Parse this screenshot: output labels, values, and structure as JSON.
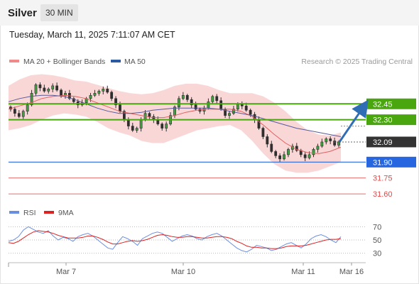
{
  "header": {
    "symbol": "Silver",
    "interval": "30 MIN"
  },
  "timestamp": "Tuesday, March 11, 2025 7:11:07 AM CET",
  "legend": {
    "ma20": "MA 20 + Bollinger Bands",
    "ma50": "MA 50",
    "credit": "Research © 2025 Trading Central",
    "rsi": "RSI",
    "rsi_ma": "9MA"
  },
  "colors": {
    "bollinger_fill": "#f9d0d0",
    "ma20": "#e06060",
    "ma50": "#5a5a9a",
    "candle": "#2f2f2f",
    "bull": "#3fa03f",
    "green_level": "#4aa60f",
    "blue_level": "#2866e0",
    "red_level": "#e04848",
    "dark_tag": "#333333",
    "arrow": "#2f6db5",
    "rsi": "#6b8fe0",
    "rsi_ma": "#dd2222"
  },
  "chart_data": [
    {
      "type": "candlestick",
      "title": "Silver 30 MIN",
      "ylim": [
        31.52,
        32.76
      ],
      "x_labels": [
        "Mar 7",
        "Mar 10",
        "Mar 11",
        "Mar 16"
      ],
      "levels": [
        {
          "label": "32.45",
          "value": 32.45,
          "kind": "resistance"
        },
        {
          "label": "32.30",
          "value": 32.3,
          "kind": "resistance"
        },
        {
          "label": "32.09",
          "value": 32.09,
          "kind": "last"
        },
        {
          "label": "31.90",
          "value": 31.9,
          "kind": "pivot"
        },
        {
          "label": "31.75",
          "value": 31.75,
          "kind": "support"
        },
        {
          "label": "31.60",
          "value": 31.6,
          "kind": "support"
        }
      ],
      "price_path": [
        32.4,
        32.36,
        32.33,
        32.38,
        32.44,
        32.55,
        32.63,
        32.6,
        32.57,
        32.59,
        32.62,
        32.58,
        32.53,
        32.55,
        32.5,
        32.47,
        32.44,
        32.46,
        32.5,
        32.53,
        32.55,
        32.57,
        32.59,
        32.56,
        32.5,
        32.44,
        32.38,
        32.3,
        32.24,
        32.2,
        32.22,
        32.3,
        32.36,
        32.33,
        32.3,
        32.26,
        32.22,
        32.26,
        32.34,
        32.42,
        32.5,
        32.53,
        32.49,
        32.44,
        32.4,
        32.38,
        32.41,
        32.47,
        32.52,
        32.48,
        32.4,
        32.34,
        32.36,
        32.4,
        32.45,
        32.43,
        32.39,
        32.35,
        32.3,
        32.22,
        32.14,
        32.07,
        32.0,
        31.96,
        31.93,
        31.97,
        32.02,
        32.05,
        32.01,
        31.97,
        31.94,
        31.97,
        32.02,
        32.05,
        32.09,
        32.12,
        32.1,
        32.06,
        32.09
      ],
      "moving_average_20": [
        32.4,
        32.43,
        32.46,
        32.5,
        32.52,
        32.53,
        32.52,
        32.5,
        32.46,
        32.42,
        32.38,
        32.36,
        32.34,
        32.32,
        32.32,
        32.34,
        32.37,
        32.39,
        32.4,
        32.4,
        32.4,
        32.38,
        32.33,
        32.25,
        32.16,
        32.08,
        32.02,
        31.99,
        31.98,
        32.0,
        32.04
      ],
      "moving_average_50": [
        32.47,
        32.5,
        32.52,
        32.53,
        32.53,
        32.52,
        32.49,
        32.45,
        32.41,
        32.38,
        32.36,
        32.36,
        32.37,
        32.39,
        32.4,
        32.41,
        32.41,
        32.41,
        32.41,
        32.4,
        32.38,
        32.36,
        32.34,
        32.31,
        32.28,
        32.25,
        32.22,
        32.2,
        32.18,
        32.16,
        32.14
      ],
      "bollinger_upper": [
        32.62,
        32.68,
        32.72,
        32.73,
        32.72,
        32.7,
        32.67,
        32.66,
        32.63,
        32.6,
        32.57,
        32.55,
        32.54,
        32.55,
        32.58,
        32.62,
        32.64,
        32.64,
        32.62,
        32.58,
        32.55,
        32.55,
        32.55,
        32.52,
        32.46,
        32.38,
        32.28,
        32.2,
        32.16,
        32.15,
        32.18
      ],
      "bollinger_lower": [
        32.2,
        32.22,
        32.25,
        32.3,
        32.34,
        32.36,
        32.35,
        32.33,
        32.28,
        32.22,
        32.18,
        32.15,
        32.1,
        32.08,
        32.08,
        32.12,
        32.16,
        32.2,
        32.22,
        32.24,
        32.25,
        32.2,
        32.1,
        31.98,
        31.88,
        31.82,
        31.8,
        31.8,
        31.82,
        31.86,
        31.9
      ],
      "projection": {
        "from": 32.09,
        "to": 32.45
      }
    },
    {
      "type": "line",
      "title": "RSI",
      "ylim": [
        20,
        80
      ],
      "yticks": [
        30,
        50,
        70
      ],
      "series": [
        {
          "name": "RSI",
          "values": [
            48,
            50,
            55,
            65,
            70,
            66,
            62,
            60,
            64,
            56,
            50,
            54,
            52,
            48,
            55,
            58,
            60,
            56,
            50,
            44,
            38,
            36,
            46,
            55,
            52,
            48,
            42,
            52,
            56,
            60,
            62,
            60,
            54,
            48,
            52,
            56,
            58,
            56,
            52,
            50,
            55,
            58,
            60,
            56,
            50,
            44,
            38,
            34,
            32,
            36,
            42,
            40,
            38,
            34,
            36,
            40,
            44,
            46,
            42,
            38,
            44,
            52,
            56,
            58,
            55,
            50,
            46,
            55
          ]
        },
        {
          "name": "9MA",
          "values": [
            46,
            45,
            48,
            53,
            58,
            62,
            64,
            63,
            62,
            60,
            57,
            55,
            53,
            53,
            53,
            54,
            56,
            56,
            54,
            51,
            47,
            44,
            44,
            46,
            48,
            49,
            48,
            49,
            51,
            54,
            57,
            58,
            57,
            55,
            54,
            54,
            55,
            55,
            54,
            53,
            53,
            54,
            55,
            55,
            54,
            52,
            48,
            45,
            41,
            39,
            39,
            38,
            38,
            37,
            37,
            38,
            40,
            41,
            41,
            41,
            42,
            44,
            46,
            48,
            50,
            51,
            51,
            52
          ]
        }
      ]
    }
  ]
}
